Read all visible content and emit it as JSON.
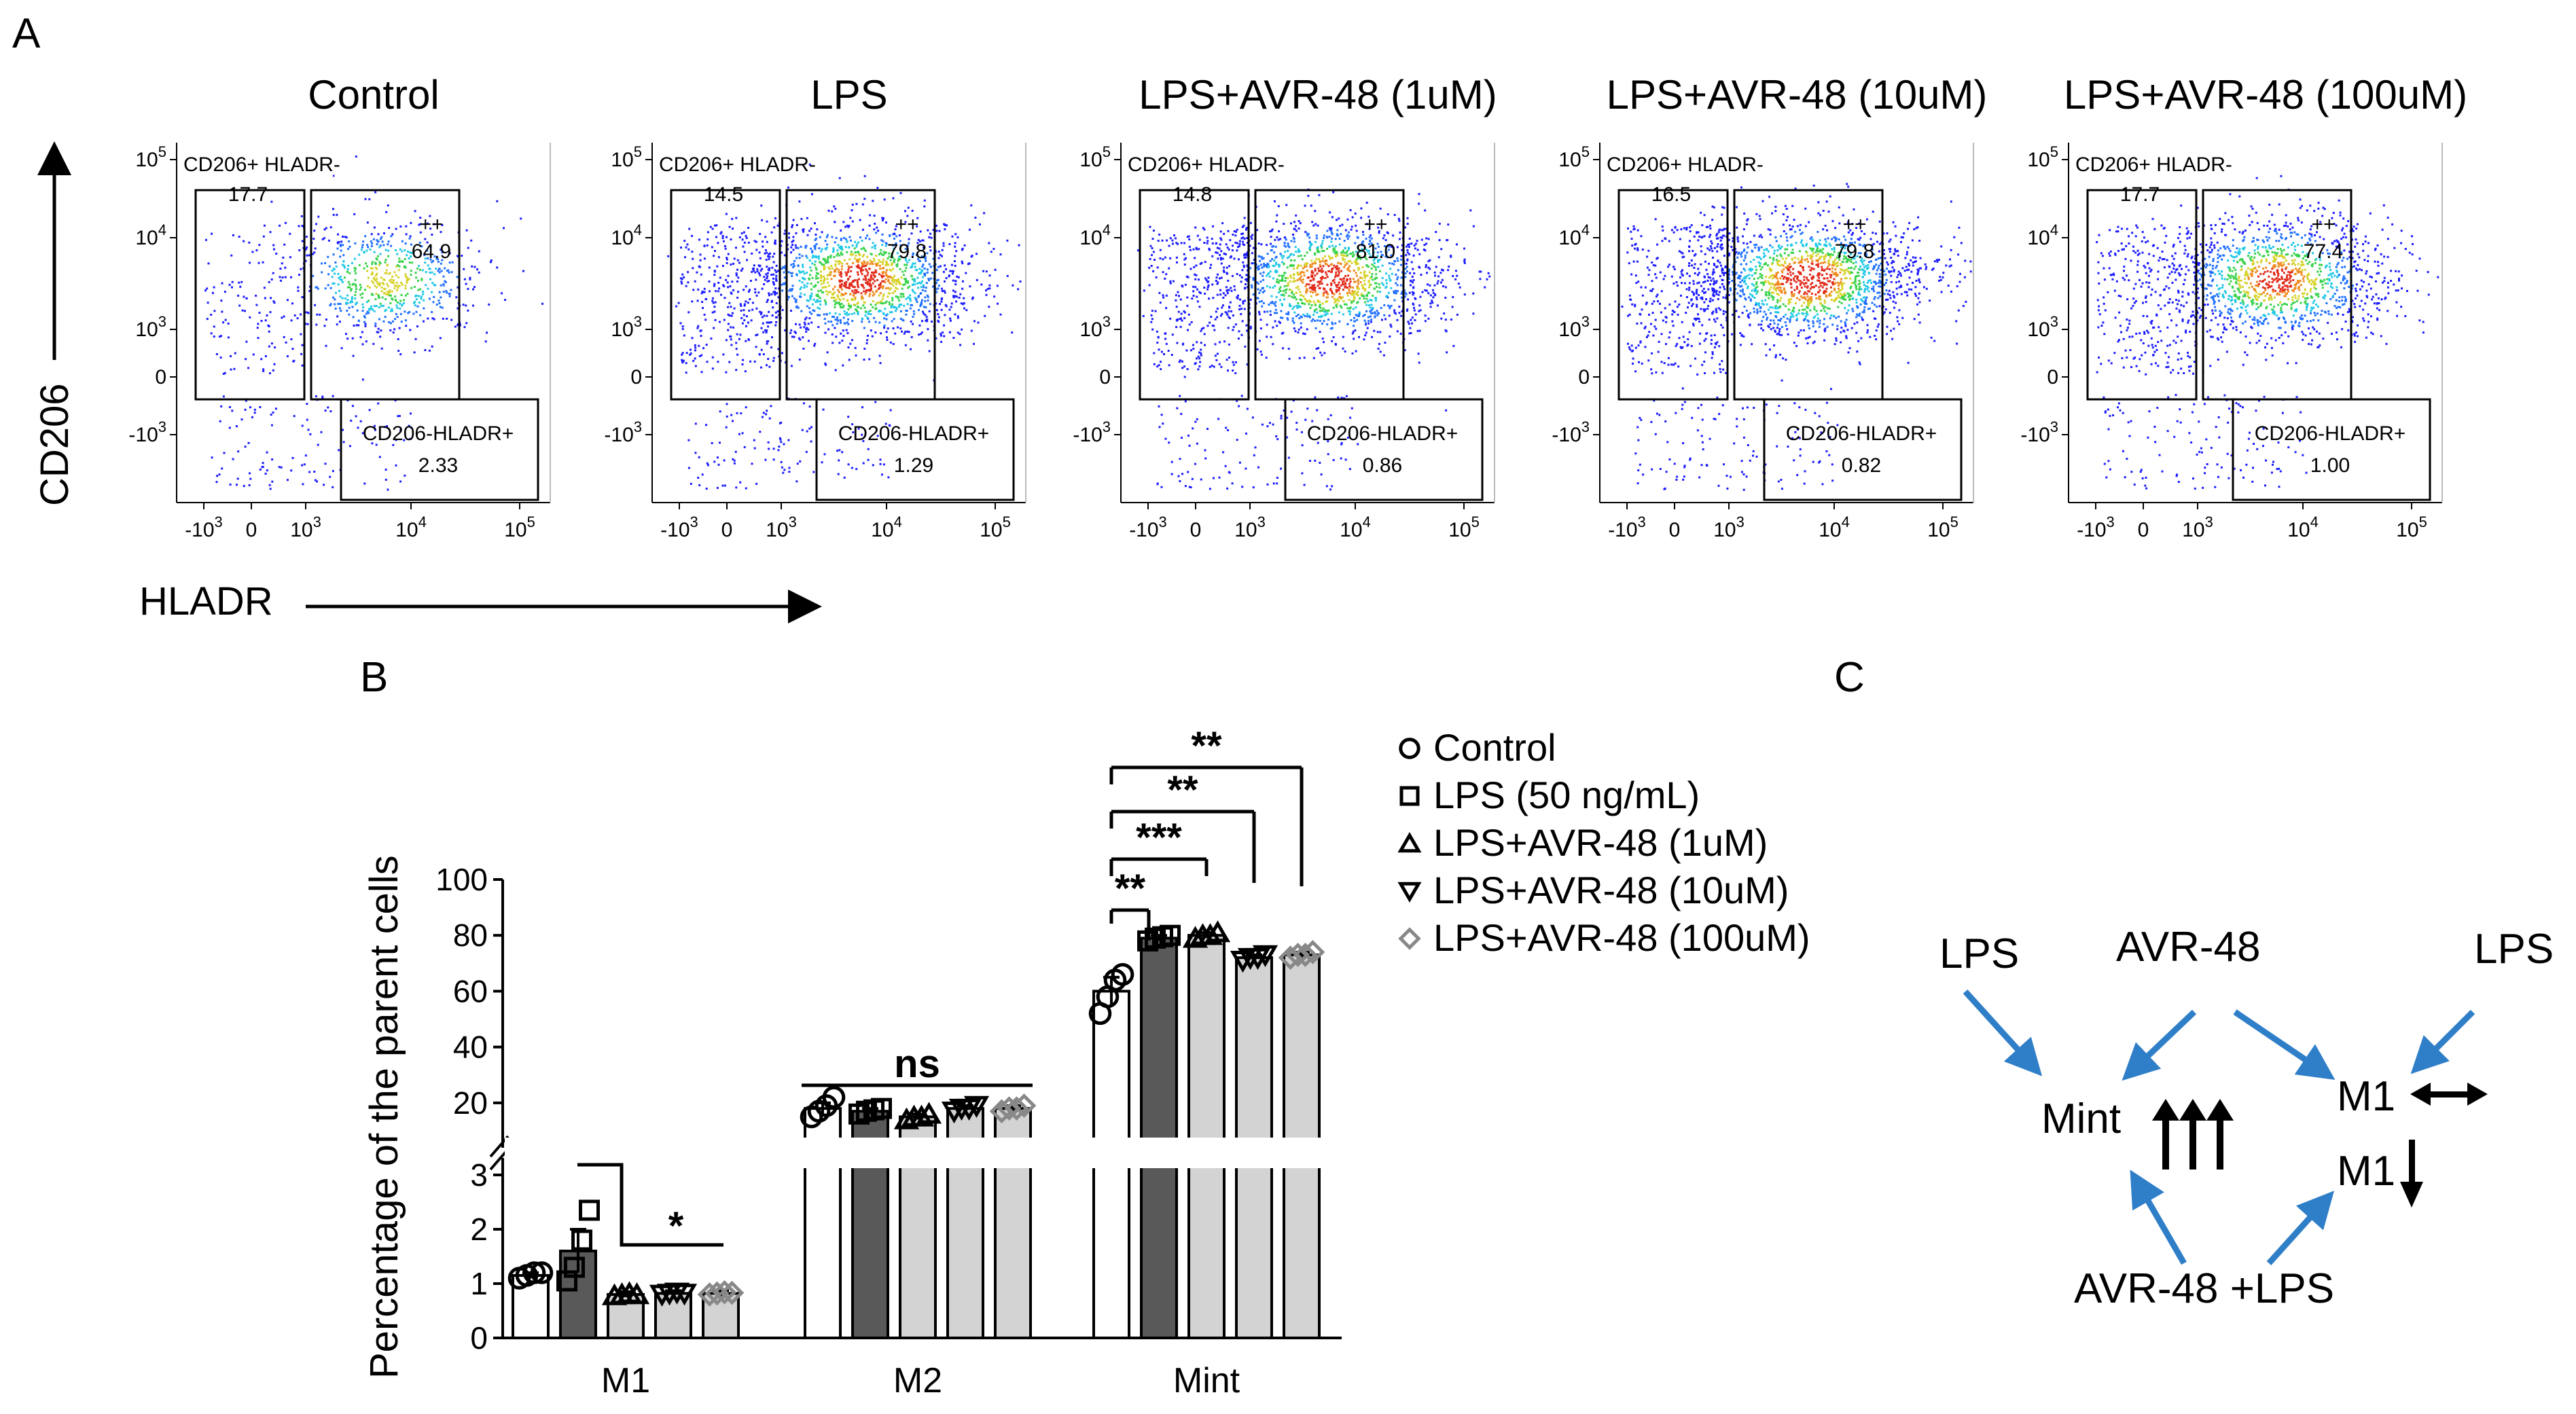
{
  "panel_labels": {
    "a": "A",
    "b": "B",
    "c": "C"
  },
  "flow": {
    "y_axis_label": "CD206",
    "x_axis_label": "HLADR",
    "y_ticks": [
      {
        "base": "10",
        "exp": "5"
      },
      {
        "base": "10",
        "exp": "4"
      },
      {
        "base": "10",
        "exp": "3"
      },
      {
        "base": "0",
        "exp": ""
      },
      {
        "base": "-10",
        "exp": "3"
      }
    ],
    "x_ticks": [
      {
        "base": "-10",
        "exp": "3"
      },
      {
        "base": "0",
        "exp": ""
      },
      {
        "base": "10",
        "exp": "3"
      },
      {
        "base": "10",
        "exp": "4"
      },
      {
        "base": "10",
        "exp": "5"
      }
    ],
    "gate_labels": {
      "cd206_pos": "CD206+ HLADR-",
      "double_pos": "++",
      "hladr_pos": "CD206-HLADR+"
    },
    "plots": [
      {
        "title": "Control",
        "q_cd206": "17.7",
        "q_double": "64.9",
        "q_hladr": "2.33",
        "density": 0.45
      },
      {
        "title": "LPS",
        "q_cd206": "14.5",
        "q_double": "79.8",
        "q_hladr": "1.29",
        "density": 1.0
      },
      {
        "title": "LPS+AVR-48 (1uM)",
        "q_cd206": "14.8",
        "q_double": "81.0",
        "q_hladr": "0.86",
        "density": 1.0
      },
      {
        "title": "LPS+AVR-48 (10uM)",
        "q_cd206": "16.5",
        "q_double": "79.8",
        "q_hladr": "0.82",
        "density": 1.1
      },
      {
        "title": "LPS+AVR-48 (100uM)",
        "q_cd206": "17.7",
        "q_double": "77.4",
        "q_hladr": "1.00",
        "density": 0.9
      }
    ]
  },
  "chart_data": {
    "type": "bar",
    "title": "",
    "xlabel": "",
    "ylabel": "Percentage of the parent cells",
    "categories": [
      "M1",
      "M2",
      "Mint"
    ],
    "axis_break": {
      "lower_range": [
        0,
        3
      ],
      "upper_range": [
        10,
        100
      ]
    },
    "yticks_lower": [
      "0",
      "1",
      "2",
      "3"
    ],
    "yticks_upper": [
      "20",
      "40",
      "60",
      "80",
      "100"
    ],
    "series": [
      {
        "name": "Control",
        "marker": "circle",
        "fill": "#ffffff",
        "values": [
          1.15,
          18,
          60
        ],
        "error": [
          0.05,
          2,
          5
        ],
        "points": [
          [
            1.1,
            1.15,
            1.2,
            1.2
          ],
          [
            15,
            17,
            19,
            22
          ],
          [
            52,
            58,
            64,
            66
          ]
        ]
      },
      {
        "name": "LPS (50 ng/mL)",
        "marker": "square",
        "fill": "#595959",
        "values": [
          1.6,
          17,
          79
        ],
        "error": [
          0.4,
          1,
          1
        ],
        "points": [
          [
            1.05,
            1.3,
            1.8,
            2.35
          ],
          [
            16,
            17,
            17.5,
            18
          ],
          [
            78,
            79,
            79.5,
            80
          ]
        ]
      },
      {
        "name": "LPS+AVR-48 (1uM)",
        "marker": "triangle-up",
        "fill": "#d3d3d3",
        "values": [
          0.8,
          15,
          80
        ],
        "error": [
          0.05,
          1,
          1
        ],
        "points": [
          [
            0.78,
            0.8,
            0.82,
            0.8
          ],
          [
            14,
            15,
            15,
            16
          ],
          [
            79,
            80,
            80,
            81
          ]
        ]
      },
      {
        "name": "LPS+AVR-48 (10uM)",
        "marker": "triangle-down",
        "fill": "#d3d3d3",
        "values": [
          0.82,
          18,
          72
        ],
        "error": [
          0.05,
          1,
          1
        ],
        "points": [
          [
            0.8,
            0.82,
            0.84,
            0.82
          ],
          [
            17,
            18,
            18,
            19
          ],
          [
            71,
            72,
            72,
            73
          ]
        ]
      },
      {
        "name": "LPS+AVR-48 (100uM)",
        "marker": "diamond",
        "fill": "#d3d3d3",
        "values": [
          0.82,
          18,
          73
        ],
        "error": [
          0.05,
          1,
          1
        ],
        "points": [
          [
            0.8,
            0.82,
            0.84,
            0.83
          ],
          [
            17,
            18,
            18,
            19
          ],
          [
            72,
            73,
            73,
            74
          ]
        ]
      }
    ],
    "significance": [
      {
        "category": "M1",
        "label": "*"
      },
      {
        "category": "M2",
        "label": "ns"
      },
      {
        "category": "Mint",
        "label": "**"
      },
      {
        "category": "Mint",
        "label": "***"
      },
      {
        "category": "Mint",
        "label": "**"
      },
      {
        "category": "Mint",
        "label": "**"
      }
    ],
    "legend_position": "right"
  },
  "diagram": {
    "lps_left": "LPS",
    "avr": "AVR-48",
    "lps_right": "LPS",
    "mint": "Mint",
    "m1_top": "M1",
    "m1_bottom": "M1",
    "avr_lps": "AVR-48 +LPS",
    "arrow_color": "#2f7ec8"
  }
}
